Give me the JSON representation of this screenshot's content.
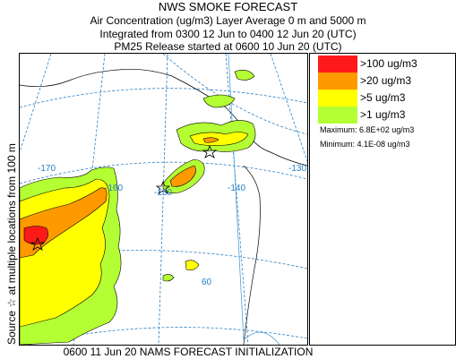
{
  "header": {
    "title": "NWS SMOKE FORECAST",
    "line2": "Air Concentration (ug/m3) Layer Average    0 m and  5000 m",
    "line3": "Integrated from 0300 12 Jun to 0400 12 Jun 20 (UTC)",
    "line4": "PM25 Release started at 0600 10 Jun 20 (UTC)"
  },
  "side_label": "Source ☆  at multiple locations    from   100 m",
  "footer": "0600 11 Jun 20 NAMS FORECAST INITIALIZATION",
  "legend": {
    "items": [
      {
        "label": ">100 ug/m3",
        "color": "#ff1a1a"
      },
      {
        "label": ">20 ug/m3",
        "color": "#ff9900"
      },
      {
        "label": ">5 ug/m3",
        "color": "#ffff00"
      },
      {
        "label": ">1 ug/m3",
        "color": "#b3ff33"
      }
    ],
    "maximum": "Maximum: 6.8E+02 ug/m3",
    "minimum": "Minimum: 4.1E-08 ug/m3"
  },
  "map": {
    "graticule_labels": [
      "-170",
      "-160",
      "-150",
      "-140",
      "-130",
      "60"
    ],
    "graticule_color": "#2a7fc2"
  }
}
